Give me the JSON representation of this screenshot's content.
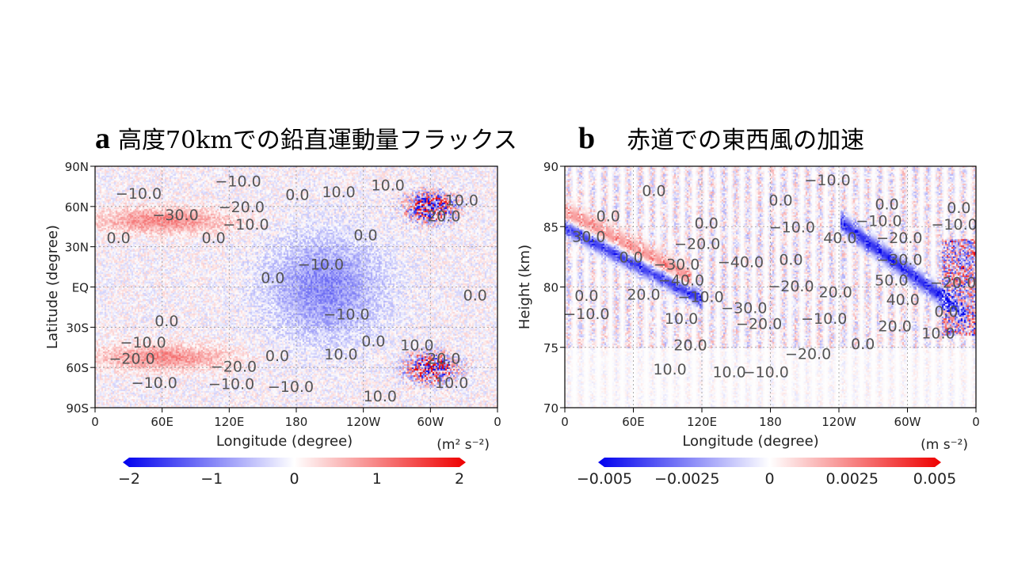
{
  "panels": [
    {
      "letter": "a",
      "title": "高度70kmでの鉛直運動量フラックス",
      "chart_data": {
        "type": "heatmap",
        "title": "高度70kmでの鉛直運動量フラックス",
        "xlabel": "Longitude (degree)",
        "ylabel": "Latitude (degree)",
        "units": "(m² s⁻²)",
        "x_ticks": [
          "0",
          "60E",
          "120E",
          "180",
          "120W",
          "60W",
          "0"
        ],
        "xlim": [
          0,
          360
        ],
        "y_ticks": [
          "90S",
          "60S",
          "30S",
          "EQ",
          "30N",
          "60N",
          "90N"
        ],
        "ylim": [
          -90,
          90
        ],
        "colorbar": {
          "ticks": [
            "−2",
            "−1",
            "0",
            "1",
            "2"
          ],
          "range": [
            -2,
            2
          ],
          "colors": [
            "#0000ee",
            "#ffffff",
            "#ee0000"
          ]
        },
        "grid": "dotted",
        "contour_labels": [
          {
            "t": "−10.0",
            "x": 128,
            "y": 79
          },
          {
            "t": "−10.0",
            "x": 39,
            "y": 70
          },
          {
            "t": "−20.0",
            "x": 131,
            "y": 60
          },
          {
            "t": "−30.0",
            "x": 72,
            "y": 54
          },
          {
            "t": "−10.0",
            "x": 135,
            "y": 47
          },
          {
            "t": "0.0",
            "x": 21,
            "y": 37
          },
          {
            "t": "0.0",
            "x": 106,
            "y": 37
          },
          {
            "t": "0.0",
            "x": 181,
            "y": 69
          },
          {
            "t": "10.0",
            "x": 218,
            "y": 71
          },
          {
            "t": "10.0",
            "x": 262,
            "y": 76
          },
          {
            "t": "10.0",
            "x": 328,
            "y": 65
          },
          {
            "t": "20.0",
            "x": 312,
            "y": 53
          },
          {
            "t": "0.0",
            "x": 242,
            "y": 39
          },
          {
            "t": "−10.0",
            "x": 202,
            "y": 17
          },
          {
            "t": "0.0",
            "x": 159,
            "y": 7
          },
          {
            "t": "0.0",
            "x": 340,
            "y": -6
          },
          {
            "t": "−10.0",
            "x": 225,
            "y": -20
          },
          {
            "t": "0.0",
            "x": 64,
            "y": -25
          },
          {
            "t": "−10.0",
            "x": 43,
            "y": -41
          },
          {
            "t": "0.0",
            "x": 249,
            "y": -40
          },
          {
            "t": "10.0",
            "x": 288,
            "y": -43
          },
          {
            "t": "−20.0",
            "x": 33,
            "y": -53
          },
          {
            "t": "0.0",
            "x": 163,
            "y": -51
          },
          {
            "t": "10.0",
            "x": 220,
            "y": -50
          },
          {
            "t": "20.0",
            "x": 312,
            "y": -53
          },
          {
            "t": "−20.0",
            "x": 124,
            "y": -59
          },
          {
            "t": "−10.0",
            "x": 53,
            "y": -71
          },
          {
            "t": "−10.0",
            "x": 122,
            "y": -72
          },
          {
            "t": "−10.0",
            "x": 175,
            "y": -74
          },
          {
            "t": "10.0",
            "x": 255,
            "y": -81
          },
          {
            "t": "10.0",
            "x": 319,
            "y": -71
          }
        ]
      }
    },
    {
      "letter": "b",
      "title": "赤道での東西風の加速",
      "chart_data": {
        "type": "heatmap",
        "title": "赤道での東西風の加速",
        "xlabel": "Longitude (degree)",
        "ylabel": "Height (km)",
        "units": "(m s⁻²)",
        "x_ticks": [
          "0",
          "60E",
          "120E",
          "180",
          "120W",
          "60W",
          "0"
        ],
        "xlim": [
          0,
          360
        ],
        "y_ticks": [
          "70",
          "75",
          "80",
          "85",
          "90"
        ],
        "ylim": [
          70,
          90
        ],
        "colorbar": {
          "ticks": [
            "−0.005",
            "−0.0025",
            "0",
            "0.0025",
            "0.005"
          ],
          "range": [
            -0.005,
            0.005
          ],
          "colors": [
            "#0000ee",
            "#ffffff",
            "#ee0000"
          ]
        },
        "grid": "dotted",
        "contour_labels": [
          {
            "t": "0.0",
            "x": 78,
            "y": 88
          },
          {
            "t": "−10.0",
            "x": 230,
            "y": 88.9
          },
          {
            "t": "0.0",
            "x": 189,
            "y": 87.2
          },
          {
            "t": "0.0",
            "x": 282,
            "y": 86.9
          },
          {
            "t": "0.0",
            "x": 345,
            "y": 86.6
          },
          {
            "t": "0.0",
            "x": 38,
            "y": 85.9
          },
          {
            "t": "0.0",
            "x": 124,
            "y": 85.3
          },
          {
            "t": "−10.0",
            "x": 199,
            "y": 85
          },
          {
            "t": "−10.0",
            "x": 275,
            "y": 85.5
          },
          {
            "t": "−10.0",
            "x": 341,
            "y": 85.2
          },
          {
            "t": "30.0",
            "x": 21,
            "y": 84.2
          },
          {
            "t": "−20.0",
            "x": 116,
            "y": 83.6
          },
          {
            "t": "40.0",
            "x": 241,
            "y": 84.1
          },
          {
            "t": "−20.0",
            "x": 293,
            "y": 84.1
          },
          {
            "t": "0.0",
            "x": 58,
            "y": 82.5
          },
          {
            "t": "−30.0",
            "x": 98,
            "y": 81.9
          },
          {
            "t": "−40.0",
            "x": 154,
            "y": 82.1
          },
          {
            "t": "0.0",
            "x": 198,
            "y": 82.3
          },
          {
            "t": "−30.0",
            "x": 293,
            "y": 82.3
          },
          {
            "t": "−40.0",
            "x": 102,
            "y": 80.6
          },
          {
            "t": "−20.0",
            "x": 198,
            "y": 80.1
          },
          {
            "t": "50.0",
            "x": 286,
            "y": 80.6
          },
          {
            "t": "−20.0",
            "x": 340,
            "y": 80.4
          },
          {
            "t": "20.0",
            "x": 69,
            "y": 79.4
          },
          {
            "t": "−10.0",
            "x": 119,
            "y": 79.2
          },
          {
            "t": "20.0",
            "x": 237,
            "y": 79.6
          },
          {
            "t": "40.0",
            "x": 296,
            "y": 79
          },
          {
            "t": "0.0",
            "x": 19,
            "y": 79.3
          },
          {
            "t": "−10.0",
            "x": 19,
            "y": 77.8
          },
          {
            "t": "−30.0",
            "x": 157,
            "y": 78.3
          },
          {
            "t": "0.0",
            "x": 334,
            "y": 78
          },
          {
            "t": "10.0",
            "x": 102,
            "y": 77.4
          },
          {
            "t": "−20.0",
            "x": 170,
            "y": 77
          },
          {
            "t": "−10.0",
            "x": 227,
            "y": 77.4
          },
          {
            "t": "20.0",
            "x": 289,
            "y": 76.8
          },
          {
            "t": "10.0",
            "x": 327,
            "y": 76.2
          },
          {
            "t": "20.0",
            "x": 110,
            "y": 75.2
          },
          {
            "t": "−20.0",
            "x": 213,
            "y": 74.5
          },
          {
            "t": "0.0",
            "x": 261,
            "y": 75.3
          },
          {
            "t": "10.0",
            "x": 92,
            "y": 73.2
          },
          {
            "t": "10.0",
            "x": 144,
            "y": 73
          },
          {
            "t": "−10.0",
            "x": 176,
            "y": 73
          }
        ]
      }
    }
  ]
}
